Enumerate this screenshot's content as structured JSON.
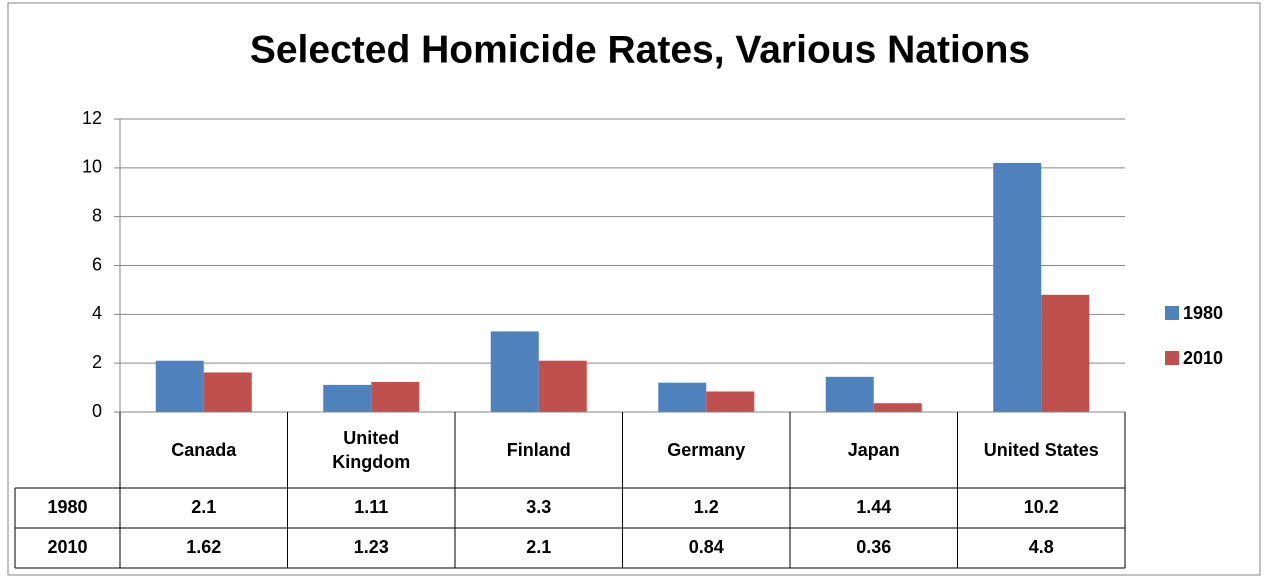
{
  "chart_data": {
    "type": "bar",
    "title": "Selected Homicide Rates, Various Nations",
    "categories": [
      "Canada",
      "United Kingdom",
      "Finland",
      "Germany",
      "Japan",
      "United States"
    ],
    "series": [
      {
        "name": "1980",
        "color": "#4f81bd",
        "values": [
          2.1,
          1.11,
          3.3,
          1.2,
          1.44,
          10.2
        ]
      },
      {
        "name": "2010",
        "color": "#c0504d",
        "values": [
          1.62,
          1.23,
          2.1,
          0.84,
          0.36,
          4.8
        ]
      }
    ],
    "ylim": [
      0,
      12
    ],
    "yticks": [
      0,
      2,
      4,
      6,
      8,
      10,
      12
    ],
    "grid": true,
    "legend": "right",
    "data_table": true
  }
}
